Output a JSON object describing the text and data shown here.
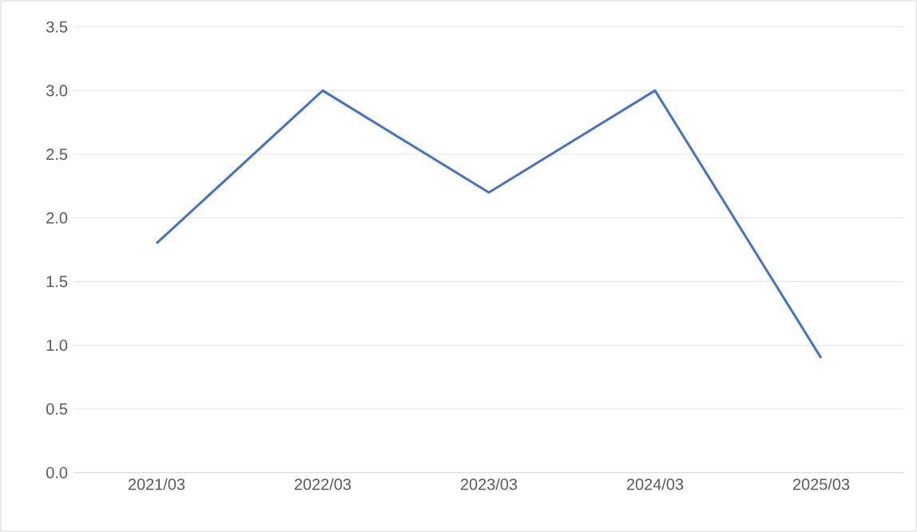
{
  "chart_data": {
    "type": "line",
    "categories": [
      "2021/03",
      "2022/03",
      "2023/03",
      "2024/03",
      "2025/03"
    ],
    "series": [
      {
        "color": "#4472c4",
        "values": [
          1.8,
          3.0,
          2.2,
          3.0,
          0.9
        ]
      }
    ],
    "ylim": [
      0,
      3.5
    ],
    "yticks": [
      {
        "value": 0,
        "label": "0.0"
      },
      {
        "value": 0.5,
        "label": "0.5"
      },
      {
        "value": 1,
        "label": "1.0"
      },
      {
        "value": 1.5,
        "label": "1.5"
      },
      {
        "value": 2,
        "label": "2.0"
      },
      {
        "value": 2.5,
        "label": "2.5"
      },
      {
        "value": 3,
        "label": "3.0"
      },
      {
        "value": 3.5,
        "label": "3.5"
      }
    ],
    "grid": "y",
    "marker": "none",
    "line_style": "solid",
    "legend": false
  }
}
